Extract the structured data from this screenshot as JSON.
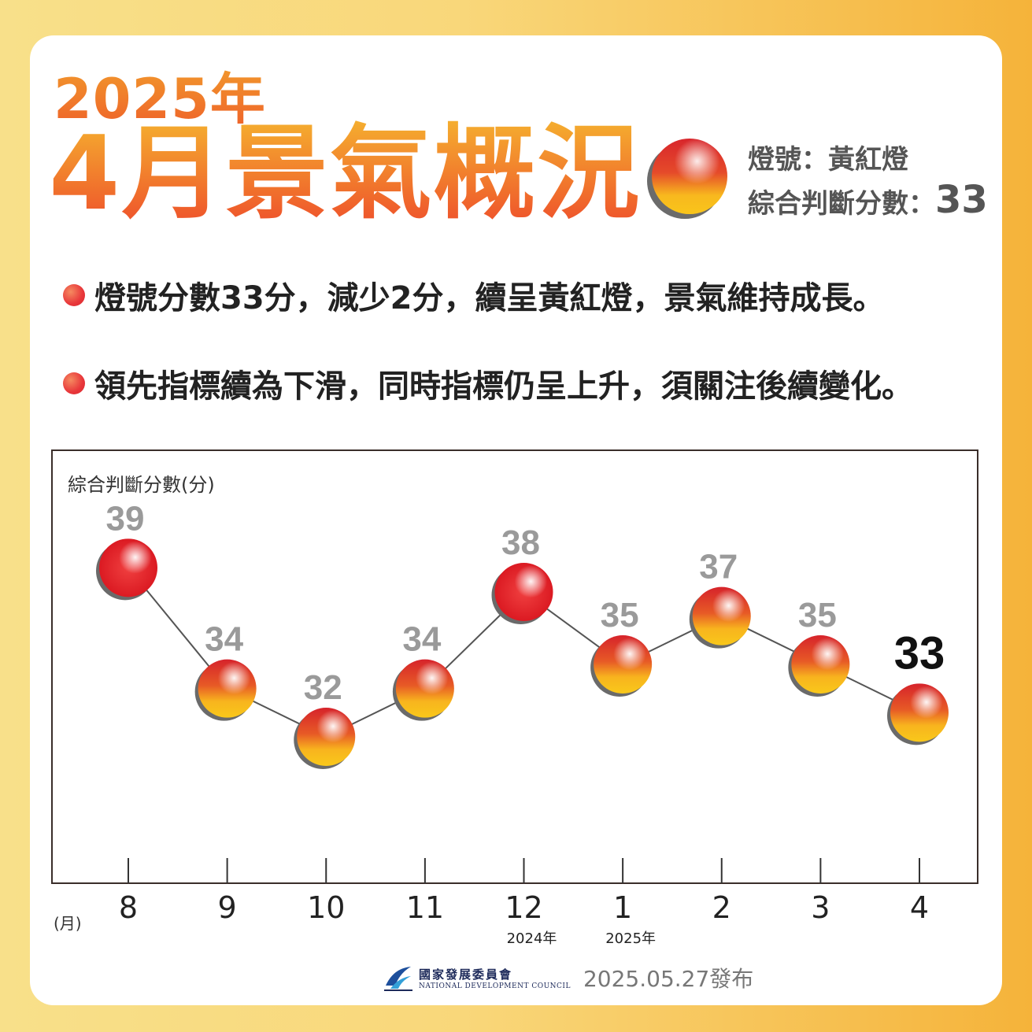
{
  "header": {
    "year": "2025年",
    "title": "4月景氣概況",
    "signal_label": "燈號：",
    "signal_value": "黃紅燈",
    "score_label": "綜合判斷分數：",
    "score_value": "33"
  },
  "bullets": [
    "燈號分數33分，減少2分，續呈黃紅燈，景氣維持成長。",
    "領先指標續為下滑，同時指標仍呈上升，須關注後續變化。"
  ],
  "colors": {
    "red_light": "#e3262d",
    "yellow_red_light_top": "#d8262c",
    "yellow_red_light_bottom": "#f8c218",
    "title_gradient_top": "#f5b02f",
    "title_gradient_bottom": "#ee4f2b"
  },
  "chart_data": {
    "type": "scatter",
    "ylabel": "綜合判斷分數(分)",
    "xlabel": "(月)",
    "categories": [
      "8",
      "9",
      "10",
      "11",
      "12",
      "1",
      "2",
      "3",
      "4"
    ],
    "year_labels": [
      {
        "category": "12",
        "text": "2024年"
      },
      {
        "category": "1",
        "text": "2025年"
      }
    ],
    "values": [
      39,
      34,
      32,
      34,
      38,
      35,
      37,
      35,
      33
    ],
    "lights": [
      "red",
      "yellow-red",
      "yellow-red",
      "yellow-red",
      "red",
      "yellow-red",
      "yellow-red",
      "yellow-red",
      "yellow-red"
    ],
    "highlight_last": true,
    "ylim": [
      26,
      41
    ],
    "legend": "none",
    "grid": false
  },
  "footer": {
    "org_zh": "國家發展委員會",
    "org_en": "NATIONAL DEVELOPMENT COUNCIL",
    "published": "2025.05.27發布"
  }
}
